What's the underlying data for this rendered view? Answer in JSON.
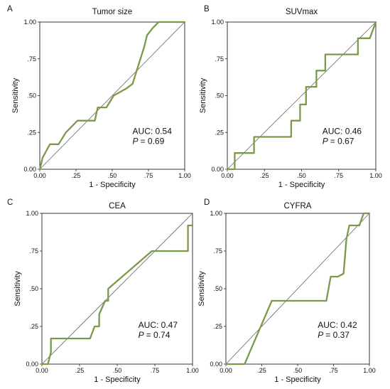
{
  "chart_data": [
    {
      "panel": "A",
      "type": "line",
      "title": "Tumor size",
      "xlabel": "1 - Specificity",
      "ylabel": "Sensitivity",
      "xlim": [
        0,
        1
      ],
      "ylim": [
        0,
        1
      ],
      "xticks": [
        "0.00",
        ".25",
        ".50",
        ".75",
        "1.00"
      ],
      "yticks": [
        "0.00",
        ".25",
        ".50",
        ".75",
        "1.00"
      ],
      "auc_text": "AUC: 0.54",
      "p_label": "P",
      "p_value": "= 0.69",
      "x": [
        0.0,
        0.02,
        0.07,
        0.13,
        0.18,
        0.26,
        0.38,
        0.4,
        0.46,
        0.51,
        0.6,
        0.64,
        0.72,
        0.74,
        0.78,
        0.82,
        1.0
      ],
      "y": [
        0.0,
        0.08,
        0.17,
        0.17,
        0.25,
        0.33,
        0.33,
        0.42,
        0.42,
        0.5,
        0.55,
        0.58,
        0.83,
        0.91,
        0.96,
        1.0,
        1.0
      ],
      "reference_line": true,
      "line_color": "#7a9a4a"
    },
    {
      "panel": "B",
      "type": "line",
      "title": "SUVmax",
      "xlabel": "1 - Specificity",
      "ylabel": "Sensitivity",
      "xlim": [
        0,
        1
      ],
      "ylim": [
        0,
        1
      ],
      "xticks": [
        "0.00",
        ".25",
        ".50",
        ".75",
        "1.00"
      ],
      "yticks": [
        "0.00",
        ".25",
        ".50",
        ".75",
        "1.00"
      ],
      "auc_text": "AUC: 0.46",
      "p_label": "P",
      "p_value": "= 0.67",
      "x": [
        0.0,
        0.05,
        0.05,
        0.18,
        0.18,
        0.43,
        0.43,
        0.49,
        0.49,
        0.53,
        0.53,
        0.6,
        0.6,
        0.66,
        0.66,
        0.75,
        0.75,
        0.88,
        0.88,
        0.96,
        1.0
      ],
      "y": [
        0.0,
        0.0,
        0.11,
        0.11,
        0.22,
        0.22,
        0.33,
        0.33,
        0.44,
        0.44,
        0.56,
        0.56,
        0.67,
        0.67,
        0.78,
        0.78,
        0.78,
        0.78,
        0.89,
        0.89,
        1.0
      ],
      "reference_line": true,
      "line_color": "#7a9a4a"
    },
    {
      "panel": "C",
      "type": "line",
      "title": "CEA",
      "xlabel": "1 - Specificity",
      "ylabel": "Sensitivity",
      "xlim": [
        0,
        1
      ],
      "ylim": [
        0,
        1
      ],
      "xticks": [
        "0.00",
        ".25",
        ".50",
        ".75",
        "1.00"
      ],
      "yticks": [
        "0.00",
        ".25",
        ".50",
        ".75",
        "1.00"
      ],
      "auc_text": "AUC: 0.47",
      "p_label": "P",
      "p_value": "= 0.74",
      "x": [
        0.0,
        0.04,
        0.06,
        0.06,
        0.32,
        0.35,
        0.38,
        0.38,
        0.42,
        0.42,
        0.44,
        0.44,
        0.73,
        0.94,
        0.97,
        0.97,
        1.0
      ],
      "y": [
        0.0,
        0.0,
        0.08,
        0.17,
        0.17,
        0.25,
        0.25,
        0.33,
        0.42,
        0.42,
        0.42,
        0.5,
        0.75,
        0.75,
        0.75,
        0.92,
        0.92
      ],
      "reference_line": true,
      "line_color": "#7a9a4a"
    },
    {
      "panel": "D",
      "type": "line",
      "title": "CYFRA",
      "xlabel": "1 - Specificity",
      "ylabel": "Sensitivity",
      "xlim": [
        0,
        1
      ],
      "ylim": [
        0,
        1
      ],
      "xticks": [
        "0.00",
        ".25",
        ".50",
        ".75",
        "1.00"
      ],
      "yticks": [
        "0.00",
        ".25",
        ".50",
        ".75",
        "1.00"
      ],
      "auc_text": "AUC: 0.42",
      "p_label": "P",
      "p_value": "= 0.37",
      "x": [
        0.0,
        0.13,
        0.13,
        0.32,
        0.7,
        0.73,
        0.78,
        0.82,
        0.84,
        0.86,
        0.9,
        0.93,
        0.96,
        1.0
      ],
      "y": [
        0.0,
        0.0,
        0.0,
        0.42,
        0.42,
        0.58,
        0.58,
        0.6,
        0.83,
        0.92,
        0.92,
        0.92,
        1.0,
        1.0
      ],
      "reference_line": true,
      "line_color": "#7a9a4a"
    }
  ]
}
